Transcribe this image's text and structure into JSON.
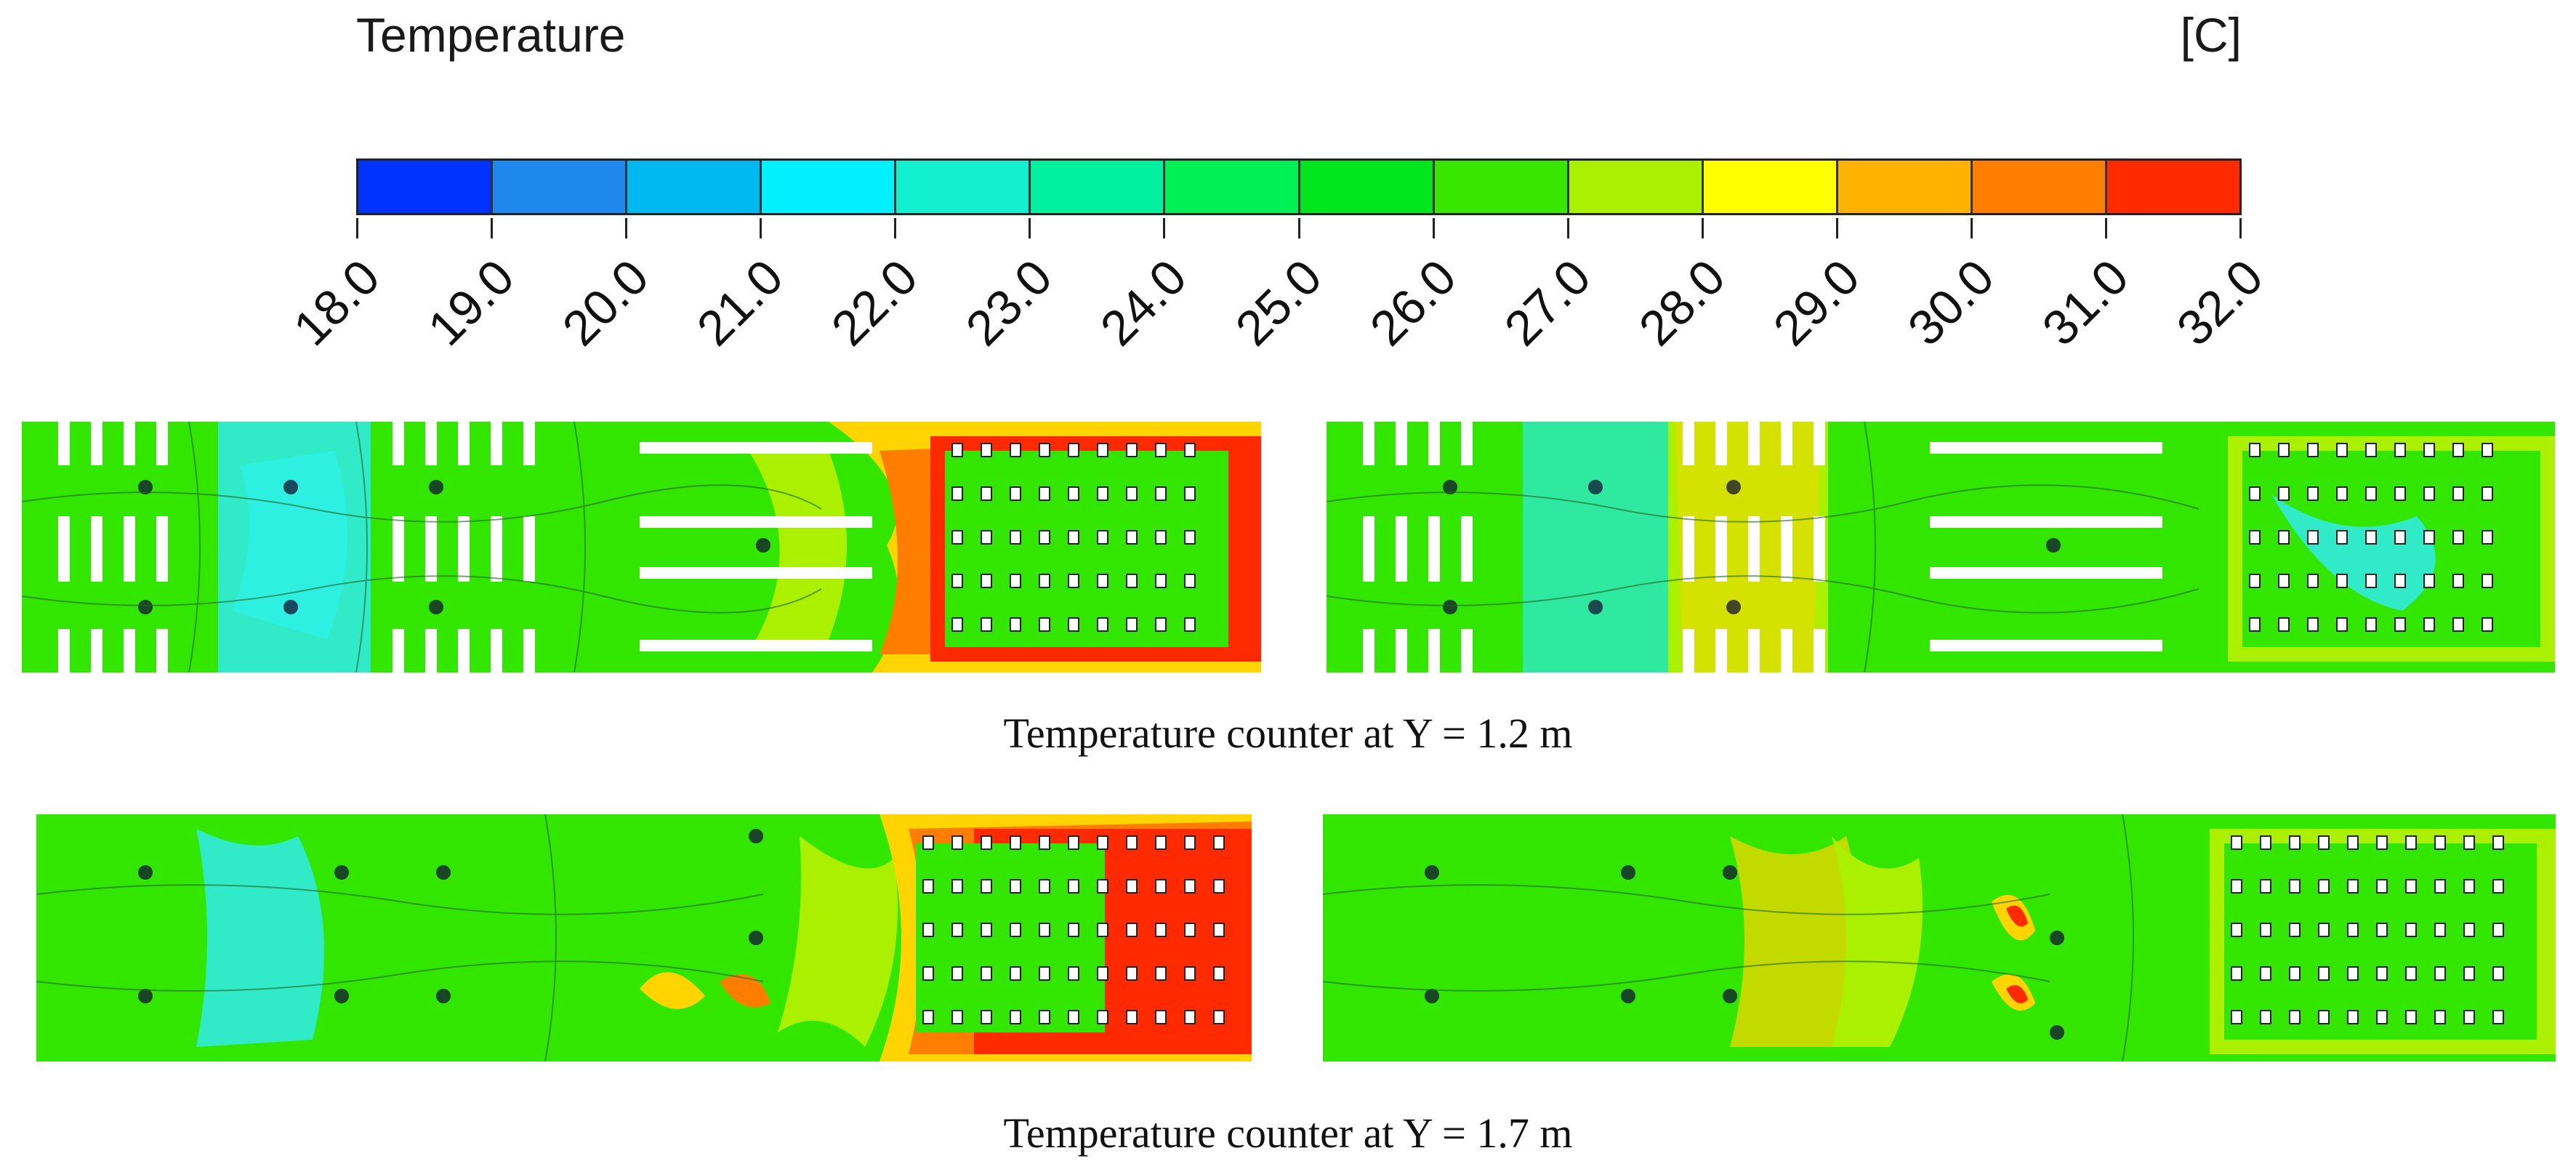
{
  "legend": {
    "title": "Temperature",
    "unit": "[C]",
    "ticks": [
      "18.0",
      "19.0",
      "20.0",
      "21.0",
      "22.0",
      "23.0",
      "24.0",
      "25.0",
      "26.0",
      "27.0",
      "28.0",
      "29.0",
      "30.0",
      "31.0",
      "32.0"
    ],
    "colors": [
      "#0033ff",
      "#1e88ee",
      "#00b8f0",
      "#00f0ff",
      "#13f0d0",
      "#00f0a0",
      "#00f055",
      "#00e61e",
      "#39e600",
      "#aaf000",
      "#ffff00",
      "#ffb300",
      "#ff7d00",
      "#ff2a00"
    ]
  },
  "captions": {
    "y12": "Temperature counter at Y = 1.2 m",
    "y17": "Temperature counter at Y = 1.7 m"
  }
}
